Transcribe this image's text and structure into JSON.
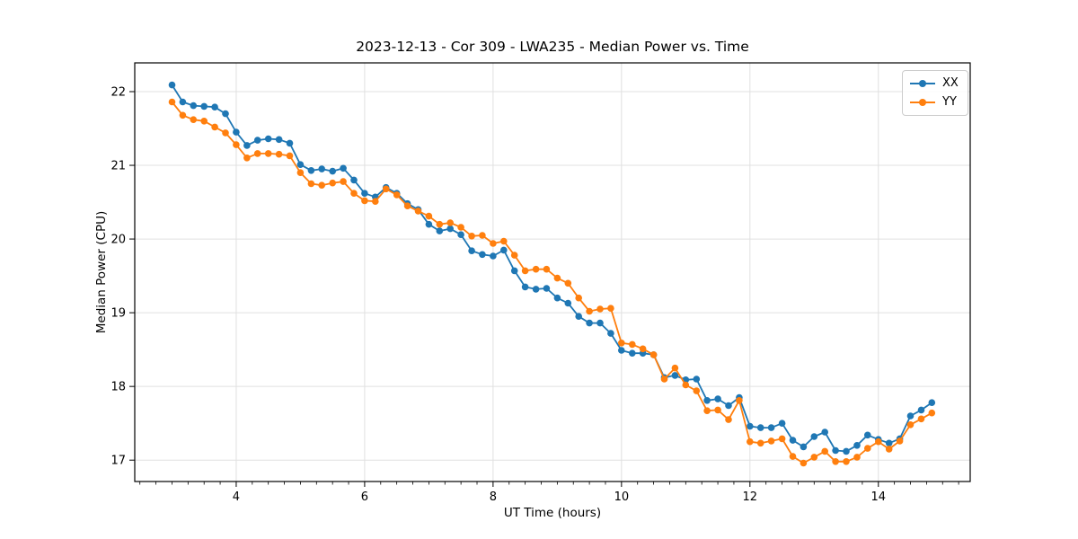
{
  "figure": {
    "title": "2023-12-13 - Cor 309 - LWA235 - Median Power vs. Time",
    "xlabel": "UT Time (hours)",
    "ylabel": "Median Power (CPU)"
  },
  "chart_data": {
    "type": "line",
    "title": "2023-12-13 - Cor 309 - LWA235 - Median Power vs. Time",
    "xlabel": "UT Time (hours)",
    "ylabel": "Median Power (CPU)",
    "xlim": [
      2.42,
      15.43
    ],
    "ylim": [
      16.71,
      22.39
    ],
    "x_major_ticks": [
      4,
      6,
      8,
      10,
      12,
      14
    ],
    "x_minor_tick_step": 0.25,
    "y_major_ticks": [
      17,
      18,
      19,
      20,
      21,
      22
    ],
    "grid": true,
    "grid_color": "#e0e0e0",
    "spine_color": "#000000",
    "legend_position": "upper right",
    "x": [
      3.0,
      3.167,
      3.333,
      3.5,
      3.667,
      3.833,
      4.0,
      4.167,
      4.333,
      4.5,
      4.667,
      4.833,
      5.0,
      5.167,
      5.333,
      5.5,
      5.667,
      5.833,
      6.0,
      6.167,
      6.333,
      6.5,
      6.667,
      6.833,
      7.0,
      7.167,
      7.333,
      7.5,
      7.667,
      7.833,
      8.0,
      8.167,
      8.333,
      8.5,
      8.667,
      8.833,
      9.0,
      9.167,
      9.333,
      9.5,
      9.667,
      9.833,
      10.0,
      10.167,
      10.333,
      10.5,
      10.667,
      10.833,
      11.0,
      11.167,
      11.333,
      11.5,
      11.667,
      11.833,
      12.0,
      12.167,
      12.333,
      12.5,
      12.667,
      12.833,
      13.0,
      13.167,
      13.333,
      13.5,
      13.667,
      13.833,
      14.0,
      14.167,
      14.333,
      14.5,
      14.667,
      14.833
    ],
    "series": [
      {
        "name": "XX",
        "color": "#1f77b4",
        "values": [
          22.09,
          21.86,
          21.81,
          21.8,
          21.79,
          21.7,
          21.45,
          21.27,
          21.34,
          21.36,
          21.35,
          21.3,
          21.01,
          20.93,
          20.95,
          20.92,
          20.96,
          20.8,
          20.62,
          20.57,
          20.7,
          20.62,
          20.48,
          20.4,
          20.2,
          20.11,
          20.14,
          20.06,
          19.84,
          19.79,
          19.77,
          19.85,
          19.57,
          19.35,
          19.32,
          19.33,
          19.2,
          19.13,
          18.95,
          18.86,
          18.86,
          18.72,
          18.49,
          18.45,
          18.45,
          18.43,
          18.12,
          18.15,
          18.09,
          18.1,
          17.81,
          17.83,
          17.74,
          17.85,
          17.46,
          17.44,
          17.44,
          17.5,
          17.27,
          17.18,
          17.32,
          17.38,
          17.13,
          17.12,
          17.2,
          17.34,
          17.28,
          17.23,
          17.29,
          17.6,
          17.68,
          17.78
        ]
      },
      {
        "name": "YY",
        "color": "#ff7f0e",
        "values": [
          21.86,
          21.68,
          21.62,
          21.6,
          21.52,
          21.44,
          21.28,
          21.1,
          21.16,
          21.16,
          21.15,
          21.13,
          20.9,
          20.75,
          20.73,
          20.76,
          20.78,
          20.62,
          20.52,
          20.51,
          20.68,
          20.6,
          20.45,
          20.38,
          20.31,
          20.2,
          20.22,
          20.16,
          20.04,
          20.05,
          19.94,
          19.97,
          19.78,
          19.57,
          19.59,
          19.59,
          19.47,
          19.4,
          19.2,
          19.02,
          19.05,
          19.06,
          18.59,
          18.57,
          18.51,
          18.43,
          18.1,
          18.25,
          18.02,
          17.94,
          17.67,
          17.68,
          17.55,
          17.81,
          17.25,
          17.23,
          17.26,
          17.29,
          17.05,
          16.96,
          17.04,
          17.12,
          16.98,
          16.98,
          17.04,
          17.16,
          17.25,
          17.15,
          17.26,
          17.48,
          17.56,
          17.64
        ]
      }
    ]
  }
}
